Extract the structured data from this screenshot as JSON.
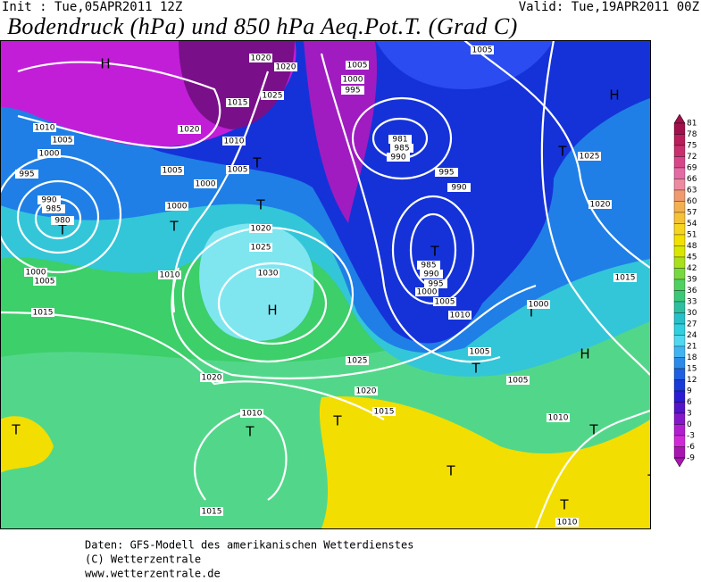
{
  "header": {
    "init": "Init : Tue,05APR2011 12Z",
    "valid": "Valid: Tue,19APR2011 00Z",
    "title": "Bodendruck (hPa) und 850 hPa Aeq.Pot.T. (Grad C)"
  },
  "colorbar": {
    "labels": [
      81,
      78,
      75,
      72,
      69,
      66,
      63,
      60,
      57,
      54,
      51,
      48,
      45,
      42,
      39,
      36,
      33,
      30,
      27,
      24,
      21,
      18,
      15,
      12,
      9,
      6,
      3,
      0,
      -3,
      -6,
      -9
    ]
  },
  "map": {
    "labels": [
      "H",
      "H",
      "H",
      "H",
      "T",
      "T",
      "T",
      "T",
      "T",
      "T",
      "T",
      "T",
      "T",
      "T",
      "T",
      "T",
      "T",
      "T",
      "T",
      "1010",
      "1005",
      "1000",
      "995",
      "990",
      "985",
      "980",
      "1000",
      "1005",
      "1015",
      "1010",
      "1000",
      "1005",
      "1000",
      "1005",
      "1010",
      "1020",
      "1015",
      "1025",
      "1020",
      "1020",
      "1020",
      "1025",
      "1030",
      "1020",
      "1025",
      "1020",
      "1015",
      "1010",
      "1015",
      "1005",
      "1000",
      "995",
      "1005",
      "981",
      "985",
      "990",
      "995",
      "990",
      "985",
      "990",
      "995",
      "1000",
      "1005",
      "1010",
      "1005",
      "1005",
      "1000",
      "1010",
      "1010",
      "1025",
      "1020",
      "1015"
    ]
  },
  "footer": {
    "lines": [
      "Daten: GFS-Modell des amerikanischen Wetterdienstes",
      "(C) Wetterzentrale",
      "www.wetterzentrale.de"
    ]
  }
}
